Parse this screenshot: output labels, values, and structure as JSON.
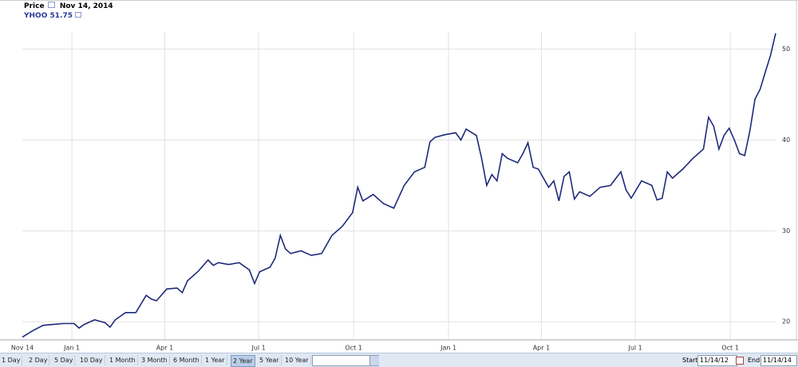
{
  "header": {
    "price_label": "Price",
    "date_label": "Nov 14, 2014",
    "legend_value": 51.75
  },
  "chart_data": {
    "type": "line",
    "x": [
      0,
      10,
      20,
      30,
      40,
      50,
      55,
      60,
      70,
      80,
      85,
      90,
      100,
      110,
      120,
      125,
      130,
      140,
      150,
      155,
      160,
      170,
      180,
      185,
      190,
      200,
      210,
      220,
      225,
      230,
      240,
      245,
      250,
      255,
      260,
      270,
      280,
      290,
      300,
      310,
      320,
      325,
      330,
      340,
      350,
      360,
      370,
      380,
      390,
      395,
      400,
      410,
      420,
      425,
      430,
      440,
      445,
      450,
      455,
      460,
      465,
      470,
      480,
      485,
      490,
      495,
      500,
      510,
      515,
      520,
      525,
      530,
      535,
      540,
      550,
      560,
      570,
      580,
      585,
      590,
      600,
      610,
      615,
      620,
      625,
      630,
      640,
      650,
      660,
      665,
      670,
      675,
      680,
      685,
      690,
      695,
      700,
      705,
      710,
      715,
      720,
      725,
      730
    ],
    "series": [
      {
        "name": "YHOO",
        "color": "#1f2a7a",
        "values": [
          18.3,
          19.0,
          19.6,
          19.7,
          19.8,
          19.8,
          19.3,
          19.7,
          20.2,
          19.9,
          19.4,
          20.2,
          21.0,
          21.0,
          22.9,
          22.5,
          22.3,
          23.6,
          23.7,
          23.2,
          24.5,
          25.5,
          26.8,
          26.2,
          26.5,
          26.3,
          26.5,
          25.7,
          24.2,
          25.5,
          26.0,
          27.0,
          29.5,
          28.0,
          27.5,
          27.8,
          27.3,
          27.5,
          29.5,
          30.5,
          32.0,
          34.8,
          33.3,
          34.0,
          33.0,
          32.5,
          35.0,
          36.5,
          37.0,
          39.8,
          40.3,
          40.6,
          40.8,
          40.0,
          41.2,
          40.5,
          38.0,
          35.0,
          36.2,
          35.5,
          38.5,
          38.0,
          37.5,
          38.5,
          39.7,
          37.0,
          36.8,
          34.8,
          35.5,
          33.3,
          36.0,
          36.5,
          33.5,
          34.3,
          33.8,
          34.8,
          35.0,
          36.5,
          34.5,
          33.6,
          35.5,
          35.0,
          33.4,
          33.6,
          36.5,
          35.8,
          36.8,
          38.0,
          39.0,
          42.5,
          41.5,
          39.0,
          40.5,
          41.3,
          40.0,
          38.5,
          38.3,
          41.0,
          44.5,
          45.6,
          47.5,
          49.3,
          51.75
        ]
      }
    ],
    "xlim": [
      0,
      730
    ],
    "xticks": [
      {
        "value": 0,
        "label": "Nov 14"
      },
      {
        "value": 48,
        "label": "Jan 1"
      },
      {
        "value": 138,
        "label": "Apr 1"
      },
      {
        "value": 229,
        "label": "Jul 1"
      },
      {
        "value": 321,
        "label": "Oct 1"
      },
      {
        "value": 413,
        "label": "Jan 1"
      },
      {
        "value": 503,
        "label": "Apr 1"
      },
      {
        "value": 594,
        "label": "Jul 1"
      },
      {
        "value": 686,
        "label": "Oct 1"
      }
    ],
    "ylim": [
      18,
      51.9
    ],
    "yticks": [
      20,
      30,
      40,
      50
    ],
    "grid": true
  },
  "controls": {
    "ranges": [
      "1 Day",
      "2 Day",
      "5 Day",
      "10 Day",
      "1 Month",
      "3 Month",
      "6 Month",
      "1 Year",
      "2 Year",
      "5 Year",
      "10 Year"
    ],
    "selected": "2 Year",
    "start_label": "Start",
    "start": "11/14/12",
    "end_label": "End",
    "end": "11/14/14"
  }
}
